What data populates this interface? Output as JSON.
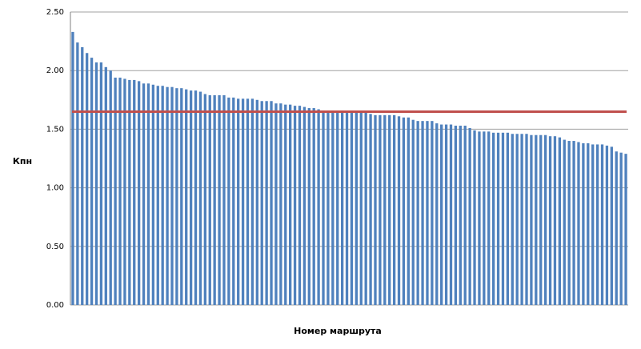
{
  "chart_data": {
    "type": "bar",
    "y_label": "Кпн",
    "x_label": "Номер маршрута",
    "color": "#4f81bd",
    "reference_line": 1.65,
    "reference_color": "#c0504d",
    "ylim": [
      0,
      2.5
    ],
    "yticks": [
      {
        "value": 0,
        "label": "0.00"
      },
      {
        "value": 0.5,
        "label": "0.50"
      },
      {
        "value": 1,
        "label": "1.00"
      },
      {
        "value": 1.5,
        "label": "1.50"
      },
      {
        "value": 2,
        "label": "2.00"
      },
      {
        "value": 2.5,
        "label": "2.50"
      }
    ],
    "grid": true,
    "values": [
      2.33,
      2.24,
      2.2,
      2.15,
      2.11,
      2.07,
      2.07,
      2.03,
      2.0,
      1.94,
      1.94,
      1.93,
      1.92,
      1.92,
      1.91,
      1.89,
      1.89,
      1.88,
      1.87,
      1.87,
      1.86,
      1.86,
      1.85,
      1.85,
      1.84,
      1.83,
      1.83,
      1.82,
      1.8,
      1.79,
      1.79,
      1.79,
      1.79,
      1.77,
      1.77,
      1.76,
      1.76,
      1.76,
      1.76,
      1.75,
      1.74,
      1.74,
      1.74,
      1.72,
      1.72,
      1.71,
      1.71,
      1.7,
      1.7,
      1.69,
      1.68,
      1.68,
      1.67,
      1.66,
      1.66,
      1.66,
      1.66,
      1.66,
      1.65,
      1.65,
      1.64,
      1.64,
      1.64,
      1.63,
      1.62,
      1.62,
      1.62,
      1.62,
      1.62,
      1.61,
      1.6,
      1.6,
      1.58,
      1.57,
      1.57,
      1.57,
      1.57,
      1.55,
      1.54,
      1.54,
      1.54,
      1.53,
      1.53,
      1.53,
      1.51,
      1.49,
      1.48,
      1.48,
      1.48,
      1.47,
      1.47,
      1.47,
      1.47,
      1.46,
      1.46,
      1.46,
      1.46,
      1.45,
      1.45,
      1.45,
      1.45,
      1.44,
      1.44,
      1.43,
      1.41,
      1.4,
      1.4,
      1.39,
      1.38,
      1.38,
      1.37,
      1.37,
      1.37,
      1.36,
      1.35,
      1.31,
      1.3,
      1.29
    ]
  }
}
